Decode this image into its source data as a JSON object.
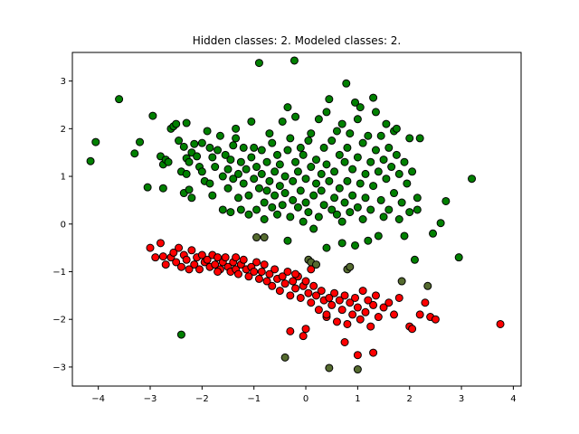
{
  "chart_data": {
    "type": "scatter",
    "title": "Hidden classes: 2. Modeled classes: 2.",
    "xlabel": "",
    "ylabel": "",
    "xlim": [
      -4.5,
      4.15
    ],
    "ylim": [
      -3.4,
      3.6
    ],
    "xticks": [
      -4,
      -3,
      -2,
      -1,
      0,
      1,
      2,
      3,
      4
    ],
    "yticks": [
      -3,
      -2,
      -1,
      0,
      1,
      2,
      3
    ],
    "grid": false,
    "legend": "none",
    "colors": {
      "green": "#008000",
      "red": "#ff0000",
      "mixed": "#556b2f",
      "edge": "#000000",
      "axis": "#000000"
    },
    "series": [
      {
        "color": "green",
        "points": [
          [
            -4.15,
            1.32
          ],
          [
            -4.05,
            1.72
          ],
          [
            -3.6,
            2.62
          ],
          [
            -3.3,
            1.48
          ],
          [
            -3.2,
            1.72
          ],
          [
            -3.05,
            0.77
          ],
          [
            -2.95,
            2.27
          ],
          [
            -2.8,
            1.42
          ],
          [
            -2.75,
            1.25
          ],
          [
            -2.75,
            0.75
          ],
          [
            -2.7,
            1.35
          ],
          [
            -2.65,
            1.3
          ],
          [
            -2.6,
            2.0
          ],
          [
            -2.55,
            2.05
          ],
          [
            -2.5,
            2.1
          ],
          [
            -2.45,
            1.75
          ],
          [
            -2.4,
            1.1
          ],
          [
            -2.35,
            1.62
          ],
          [
            -2.35,
            0.65
          ],
          [
            -2.3,
            2.12
          ],
          [
            -2.3,
            1.38
          ],
          [
            -2.3,
            1.05
          ],
          [
            -2.25,
            1.3
          ],
          [
            -2.25,
            0.72
          ],
          [
            -2.2,
            1.5
          ],
          [
            -2.2,
            0.55
          ],
          [
            -2.15,
            1.68
          ],
          [
            -2.1,
            1.42
          ],
          [
            -2.05,
            1.2
          ],
          [
            -2.0,
            1.7
          ],
          [
            -2.0,
            1.1
          ],
          [
            -1.95,
            0.9
          ],
          [
            -1.9,
            1.95
          ],
          [
            -1.85,
            1.6
          ],
          [
            -1.85,
            0.85
          ],
          [
            -1.8,
            1.4
          ],
          [
            -1.8,
            0.6
          ],
          [
            -1.75,
            1.2
          ],
          [
            -1.7,
            1.55
          ],
          [
            -1.65,
            1.85
          ],
          [
            -1.6,
            0.3
          ],
          [
            -1.6,
            1.0
          ],
          [
            -1.55,
            1.45
          ],
          [
            -1.5,
            0.75
          ],
          [
            -1.5,
            1.15
          ],
          [
            -1.45,
            0.25
          ],
          [
            -1.45,
            1.35
          ],
          [
            -1.4,
            1.65
          ],
          [
            -1.4,
            0.95
          ],
          [
            -1.35,
            2.0
          ],
          [
            -1.35,
            1.8
          ],
          [
            -1.3,
            0.55
          ],
          [
            -1.3,
            1.05
          ],
          [
            -1.25,
            0.3
          ],
          [
            -1.25,
            1.3
          ],
          [
            -1.2,
            0.85
          ],
          [
            -1.2,
            1.6
          ],
          [
            -1.15,
            1.15
          ],
          [
            -1.1,
            0.2
          ],
          [
            -1.1,
            0.6
          ],
          [
            -1.05,
            1.4
          ],
          [
            -1.05,
            2.15
          ],
          [
            -1.0,
            0.95
          ],
          [
            -1.0,
            1.6
          ],
          [
            -0.95,
            0.3
          ],
          [
            -0.95,
            1.2
          ],
          [
            -0.9,
            3.38
          ],
          [
            -0.9,
            0.75
          ],
          [
            -0.85,
            1.55
          ],
          [
            -0.85,
            1.05
          ],
          [
            -0.8,
            0.45
          ],
          [
            -0.8,
            0.1
          ],
          [
            -0.75,
            1.3
          ],
          [
            -0.75,
            0.7
          ],
          [
            -0.7,
            1.9
          ],
          [
            -0.7,
            0.9
          ],
          [
            -0.65,
            0.35
          ],
          [
            -0.65,
            1.7
          ],
          [
            -0.6,
            1.1
          ],
          [
            -0.6,
            0.6
          ],
          [
            -0.55,
            0.2
          ],
          [
            -0.55,
            1.45
          ],
          [
            -0.5,
            0.8
          ],
          [
            -0.5,
            1.25
          ],
          [
            -0.45,
            0.4
          ],
          [
            -0.45,
            2.15
          ],
          [
            -0.4,
            1.0
          ],
          [
            -0.4,
            0.65
          ],
          [
            -0.35,
            2.45
          ],
          [
            -0.35,
            1.55
          ],
          [
            -0.35,
            -0.35
          ],
          [
            -0.3,
            0.15
          ],
          [
            -0.3,
            1.8
          ],
          [
            -0.25,
            0.9
          ],
          [
            -0.25,
            0.5
          ],
          [
            -0.22,
            3.43
          ],
          [
            -0.2,
            1.3
          ],
          [
            -0.2,
            2.25
          ],
          [
            -0.15,
            0.35
          ],
          [
            -0.15,
            1.1
          ],
          [
            -0.1,
            0.7
          ],
          [
            -0.1,
            1.6
          ],
          [
            -0.05,
            0.05
          ],
          [
            -0.05,
            1.45
          ],
          [
            0.0,
            0.95
          ],
          [
            0.0,
            0.45
          ],
          [
            0.05,
            1.75
          ],
          [
            0.05,
            0.25
          ],
          [
            0.1,
            1.2
          ],
          [
            0.1,
            1.9
          ],
          [
            0.15,
            0.6
          ],
          [
            0.15,
            -0.1
          ],
          [
            0.2,
            1.35
          ],
          [
            0.2,
            0.85
          ],
          [
            0.25,
            2.2
          ],
          [
            0.25,
            0.15
          ],
          [
            0.3,
            1.05
          ],
          [
            0.3,
            0.7
          ],
          [
            0.35,
            1.6
          ],
          [
            0.35,
            0.4
          ],
          [
            0.4,
            2.35
          ],
          [
            0.4,
            1.25
          ],
          [
            0.4,
            -0.5
          ],
          [
            0.45,
            0.9
          ],
          [
            0.45,
            2.62
          ],
          [
            0.5,
            0.3
          ],
          [
            0.5,
            1.75
          ],
          [
            0.55,
            1.1
          ],
          [
            0.55,
            0.55
          ],
          [
            0.6,
            1.95
          ],
          [
            0.6,
            0.2
          ],
          [
            0.65,
            1.45
          ],
          [
            0.65,
            0.75
          ],
          [
            0.7,
            2.1
          ],
          [
            0.7,
            0.05
          ],
          [
            0.7,
            -0.4
          ],
          [
            0.75,
            1.3
          ],
          [
            0.75,
            0.45
          ],
          [
            0.78,
            2.95
          ],
          [
            0.8,
            1.6
          ],
          [
            0.8,
            0.9
          ],
          [
            0.85,
            0.25
          ],
          [
            0.85,
            1.9
          ],
          [
            0.9,
            1.15
          ],
          [
            0.9,
            0.6
          ],
          [
            0.95,
            2.55
          ],
          [
            0.95,
            -0.45
          ],
          [
            1.0,
            1.4
          ],
          [
            1.0,
            0.35
          ],
          [
            1.0,
            2.2
          ],
          [
            1.05,
            0.85
          ],
          [
            1.05,
            2.45
          ],
          [
            1.1,
            1.7
          ],
          [
            1.1,
            0.1
          ],
          [
            1.15,
            1.05
          ],
          [
            1.15,
            0.55
          ],
          [
            1.2,
            1.85
          ],
          [
            1.2,
            -0.35
          ],
          [
            1.25,
            1.3
          ],
          [
            1.25,
            0.3
          ],
          [
            1.3,
            2.65
          ],
          [
            1.3,
            0.8
          ],
          [
            1.35,
            1.55
          ],
          [
            1.35,
            2.35
          ],
          [
            1.4,
            1.1
          ],
          [
            1.4,
            -0.25
          ],
          [
            1.45,
            0.5
          ],
          [
            1.45,
            1.85
          ],
          [
            1.5,
            1.35
          ],
          [
            1.5,
            0.15
          ],
          [
            1.55,
            0.95
          ],
          [
            1.55,
            2.1
          ],
          [
            1.6,
            1.6
          ],
          [
            1.6,
            0.3
          ],
          [
            1.65,
            1.2
          ],
          [
            1.7,
            1.95
          ],
          [
            1.7,
            0.65
          ],
          [
            1.75,
            2.0
          ],
          [
            1.75,
            1.45
          ],
          [
            1.8,
            0.1
          ],
          [
            1.8,
            1.05
          ],
          [
            1.85,
            0.45
          ],
          [
            1.9,
            1.3
          ],
          [
            1.9,
            -0.25
          ],
          [
            1.95,
            0.85
          ],
          [
            2.0,
            1.8
          ],
          [
            2.0,
            0.25
          ],
          [
            2.05,
            1.1
          ],
          [
            2.1,
            -0.75
          ],
          [
            2.15,
            0.55
          ],
          [
            2.15,
            0.3
          ],
          [
            2.2,
            1.8
          ],
          [
            2.45,
            -0.2
          ],
          [
            2.6,
            0.02
          ],
          [
            2.7,
            0.48
          ],
          [
            2.95,
            -0.7
          ],
          [
            3.2,
            0.95
          ],
          [
            -2.4,
            -2.32
          ]
        ]
      },
      {
        "color": "red",
        "points": [
          [
            -3.0,
            -0.5
          ],
          [
            -2.9,
            -0.7
          ],
          [
            -2.8,
            -0.4
          ],
          [
            -2.75,
            -0.68
          ],
          [
            -2.7,
            -0.85
          ],
          [
            -2.6,
            -0.7
          ],
          [
            -2.55,
            -0.6
          ],
          [
            -2.5,
            -0.8
          ],
          [
            -2.45,
            -0.5
          ],
          [
            -2.4,
            -0.9
          ],
          [
            -2.35,
            -0.65
          ],
          [
            -2.3,
            -0.75
          ],
          [
            -2.2,
            -0.55
          ],
          [
            -2.15,
            -0.85
          ],
          [
            -2.1,
            -0.7
          ],
          [
            -2.05,
            -0.95
          ],
          [
            -2.0,
            -0.65
          ],
          [
            -1.95,
            -0.8
          ],
          [
            -1.9,
            -0.75
          ],
          [
            -1.85,
            -0.9
          ],
          [
            -1.8,
            -0.65
          ],
          [
            -1.75,
            -0.85
          ],
          [
            -1.7,
            -0.7
          ],
          [
            -1.65,
            -0.95
          ],
          [
            -1.6,
            -0.8
          ],
          [
            -1.55,
            -0.7
          ],
          [
            -1.5,
            -0.9
          ],
          [
            -1.45,
            -1.0
          ],
          [
            -1.4,
            -0.8
          ],
          [
            -1.35,
            -0.95
          ],
          [
            -1.3,
            -1.05
          ],
          [
            -1.25,
            -0.85
          ],
          [
            -1.2,
            -0.75
          ],
          [
            -1.15,
            -0.95
          ],
          [
            -1.1,
            -1.1
          ],
          [
            -1.05,
            -0.9
          ],
          [
            -1.0,
            -1.0
          ],
          [
            -0.95,
            -0.8
          ],
          [
            -0.9,
            -1.15
          ],
          [
            -0.85,
            -1.0
          ],
          [
            -0.8,
            -0.85
          ],
          [
            -0.75,
            -1.2
          ],
          [
            -0.7,
            -1.05
          ],
          [
            -0.65,
            -1.3
          ],
          [
            -0.6,
            -0.95
          ],
          [
            -0.55,
            -1.15
          ],
          [
            -0.5,
            -1.4
          ],
          [
            -0.45,
            -1.1
          ],
          [
            -0.4,
            -1.25
          ],
          [
            -0.35,
            -1.0
          ],
          [
            -0.3,
            -1.5
          ],
          [
            -0.25,
            -1.2
          ],
          [
            -0.2,
            -1.35
          ],
          [
            -0.15,
            -1.1
          ],
          [
            -0.1,
            -1.55
          ],
          [
            -0.05,
            -1.3
          ],
          [
            0.0,
            -1.2
          ],
          [
            0.05,
            -1.45
          ],
          [
            0.1,
            -1.65
          ],
          [
            0.15,
            -1.3
          ],
          [
            0.2,
            -1.5
          ],
          [
            0.25,
            -1.8
          ],
          [
            0.3,
            -1.4
          ],
          [
            0.35,
            -1.6
          ],
          [
            0.4,
            -1.95
          ],
          [
            0.45,
            -1.55
          ],
          [
            0.5,
            -1.7
          ],
          [
            0.55,
            -1.45
          ],
          [
            0.6,
            -2.05
          ],
          [
            0.65,
            -1.6
          ],
          [
            0.7,
            -1.8
          ],
          [
            0.75,
            -1.5
          ],
          [
            0.8,
            -2.1
          ],
          [
            0.85,
            -1.65
          ],
          [
            0.9,
            -1.9
          ],
          [
            0.95,
            -1.55
          ],
          [
            1.0,
            -1.75
          ],
          [
            1.05,
            -2.0
          ],
          [
            1.1,
            -1.4
          ],
          [
            1.15,
            -1.85
          ],
          [
            1.2,
            -1.6
          ],
          [
            1.25,
            -2.15
          ],
          [
            1.3,
            -1.7
          ],
          [
            1.35,
            -1.5
          ],
          [
            1.4,
            -1.95
          ],
          [
            1.5,
            -1.75
          ],
          [
            1.6,
            -1.65
          ],
          [
            1.7,
            -1.9
          ],
          [
            1.8,
            -1.55
          ],
          [
            2.0,
            -2.15
          ],
          [
            2.05,
            -2.2
          ],
          [
            2.2,
            -1.9
          ],
          [
            2.3,
            -1.65
          ],
          [
            2.4,
            -1.95
          ],
          [
            2.5,
            -2.0
          ],
          [
            3.75,
            -2.1
          ],
          [
            -0.3,
            -2.25
          ],
          [
            0.0,
            -2.2
          ],
          [
            -0.05,
            -2.35
          ],
          [
            0.75,
            -2.48
          ],
          [
            1.0,
            -2.75
          ],
          [
            1.3,
            -2.7
          ],
          [
            0.4,
            -1.9
          ],
          [
            -0.2,
            -1.05
          ],
          [
            0.1,
            -0.95
          ],
          [
            -1.7,
            -1.0
          ],
          [
            -1.35,
            -0.7
          ],
          [
            -2.25,
            -0.95
          ]
        ]
      },
      {
        "color": "mixed",
        "points": [
          [
            -0.95,
            -0.28
          ],
          [
            -0.8,
            -0.28
          ],
          [
            0.05,
            -0.75
          ],
          [
            0.1,
            -0.8
          ],
          [
            0.2,
            -0.85
          ],
          [
            0.8,
            -0.95
          ],
          [
            0.85,
            -0.9
          ],
          [
            1.85,
            -1.2
          ],
          [
            2.35,
            -1.3
          ],
          [
            -0.4,
            -2.8
          ],
          [
            0.45,
            -3.02
          ],
          [
            1.0,
            -3.05
          ]
        ]
      }
    ]
  }
}
